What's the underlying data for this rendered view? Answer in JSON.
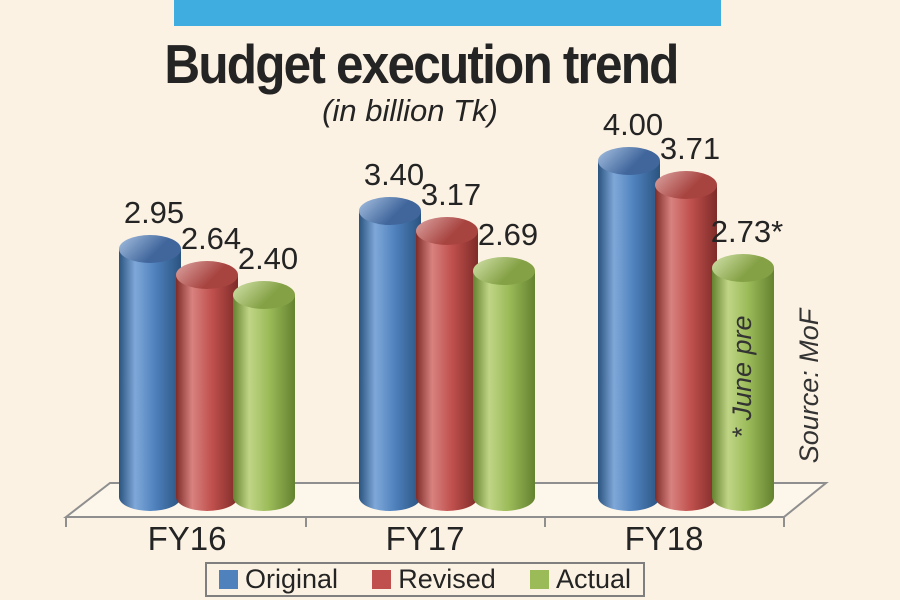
{
  "canvas": {
    "background": "#fcf2e3",
    "text_color": "#242424"
  },
  "header": {
    "accent_bar_color": "#3fade0",
    "title": "Budget execution trend",
    "subtitle": "(in billion Tk)"
  },
  "axis": {
    "line_color": "#8f8f8f"
  },
  "chart_data": {
    "type": "bar",
    "subtype": "3d-cylinder",
    "title": "Budget execution trend",
    "subtitle": "(in billion Tk)",
    "categories": [
      "FY16",
      "FY17",
      "FY18"
    ],
    "series": [
      {
        "name": "Original",
        "color": "#4f81bd",
        "shade_dark": "#2a537f",
        "shade_light": "#7fa8d9",
        "top_light": "#a8c2e2",
        "top_dark": "#40669c",
        "values": [
          2.95,
          3.4,
          4.0
        ],
        "value_labels": [
          "2.95",
          "3.40",
          "4.00"
        ]
      },
      {
        "name": "Revised",
        "color": "#c0504d",
        "shade_dark": "#7e2b28",
        "shade_light": "#d8827f",
        "top_light": "#dda6a4",
        "top_dark": "#a84440",
        "values": [
          2.64,
          3.17,
          3.71
        ],
        "value_labels": [
          "2.64",
          "3.17",
          "3.71"
        ]
      },
      {
        "name": "Actual",
        "color": "#9bbb59",
        "shade_dark": "#64822f",
        "shade_light": "#c0d586",
        "top_light": "#d4e3ac",
        "top_dark": "#84a145",
        "values": [
          2.4,
          2.69,
          2.73
        ],
        "value_labels": [
          "2.40",
          "2.69",
          "2.73*"
        ]
      }
    ],
    "ylim": [
      0,
      4.3
    ],
    "grid": false,
    "legend_position": "bottom",
    "annotations": [
      "* June pre",
      "Source: MoF"
    ]
  },
  "notes": {
    "asterisk_note": "* June pre",
    "source": "Source: MoF"
  }
}
